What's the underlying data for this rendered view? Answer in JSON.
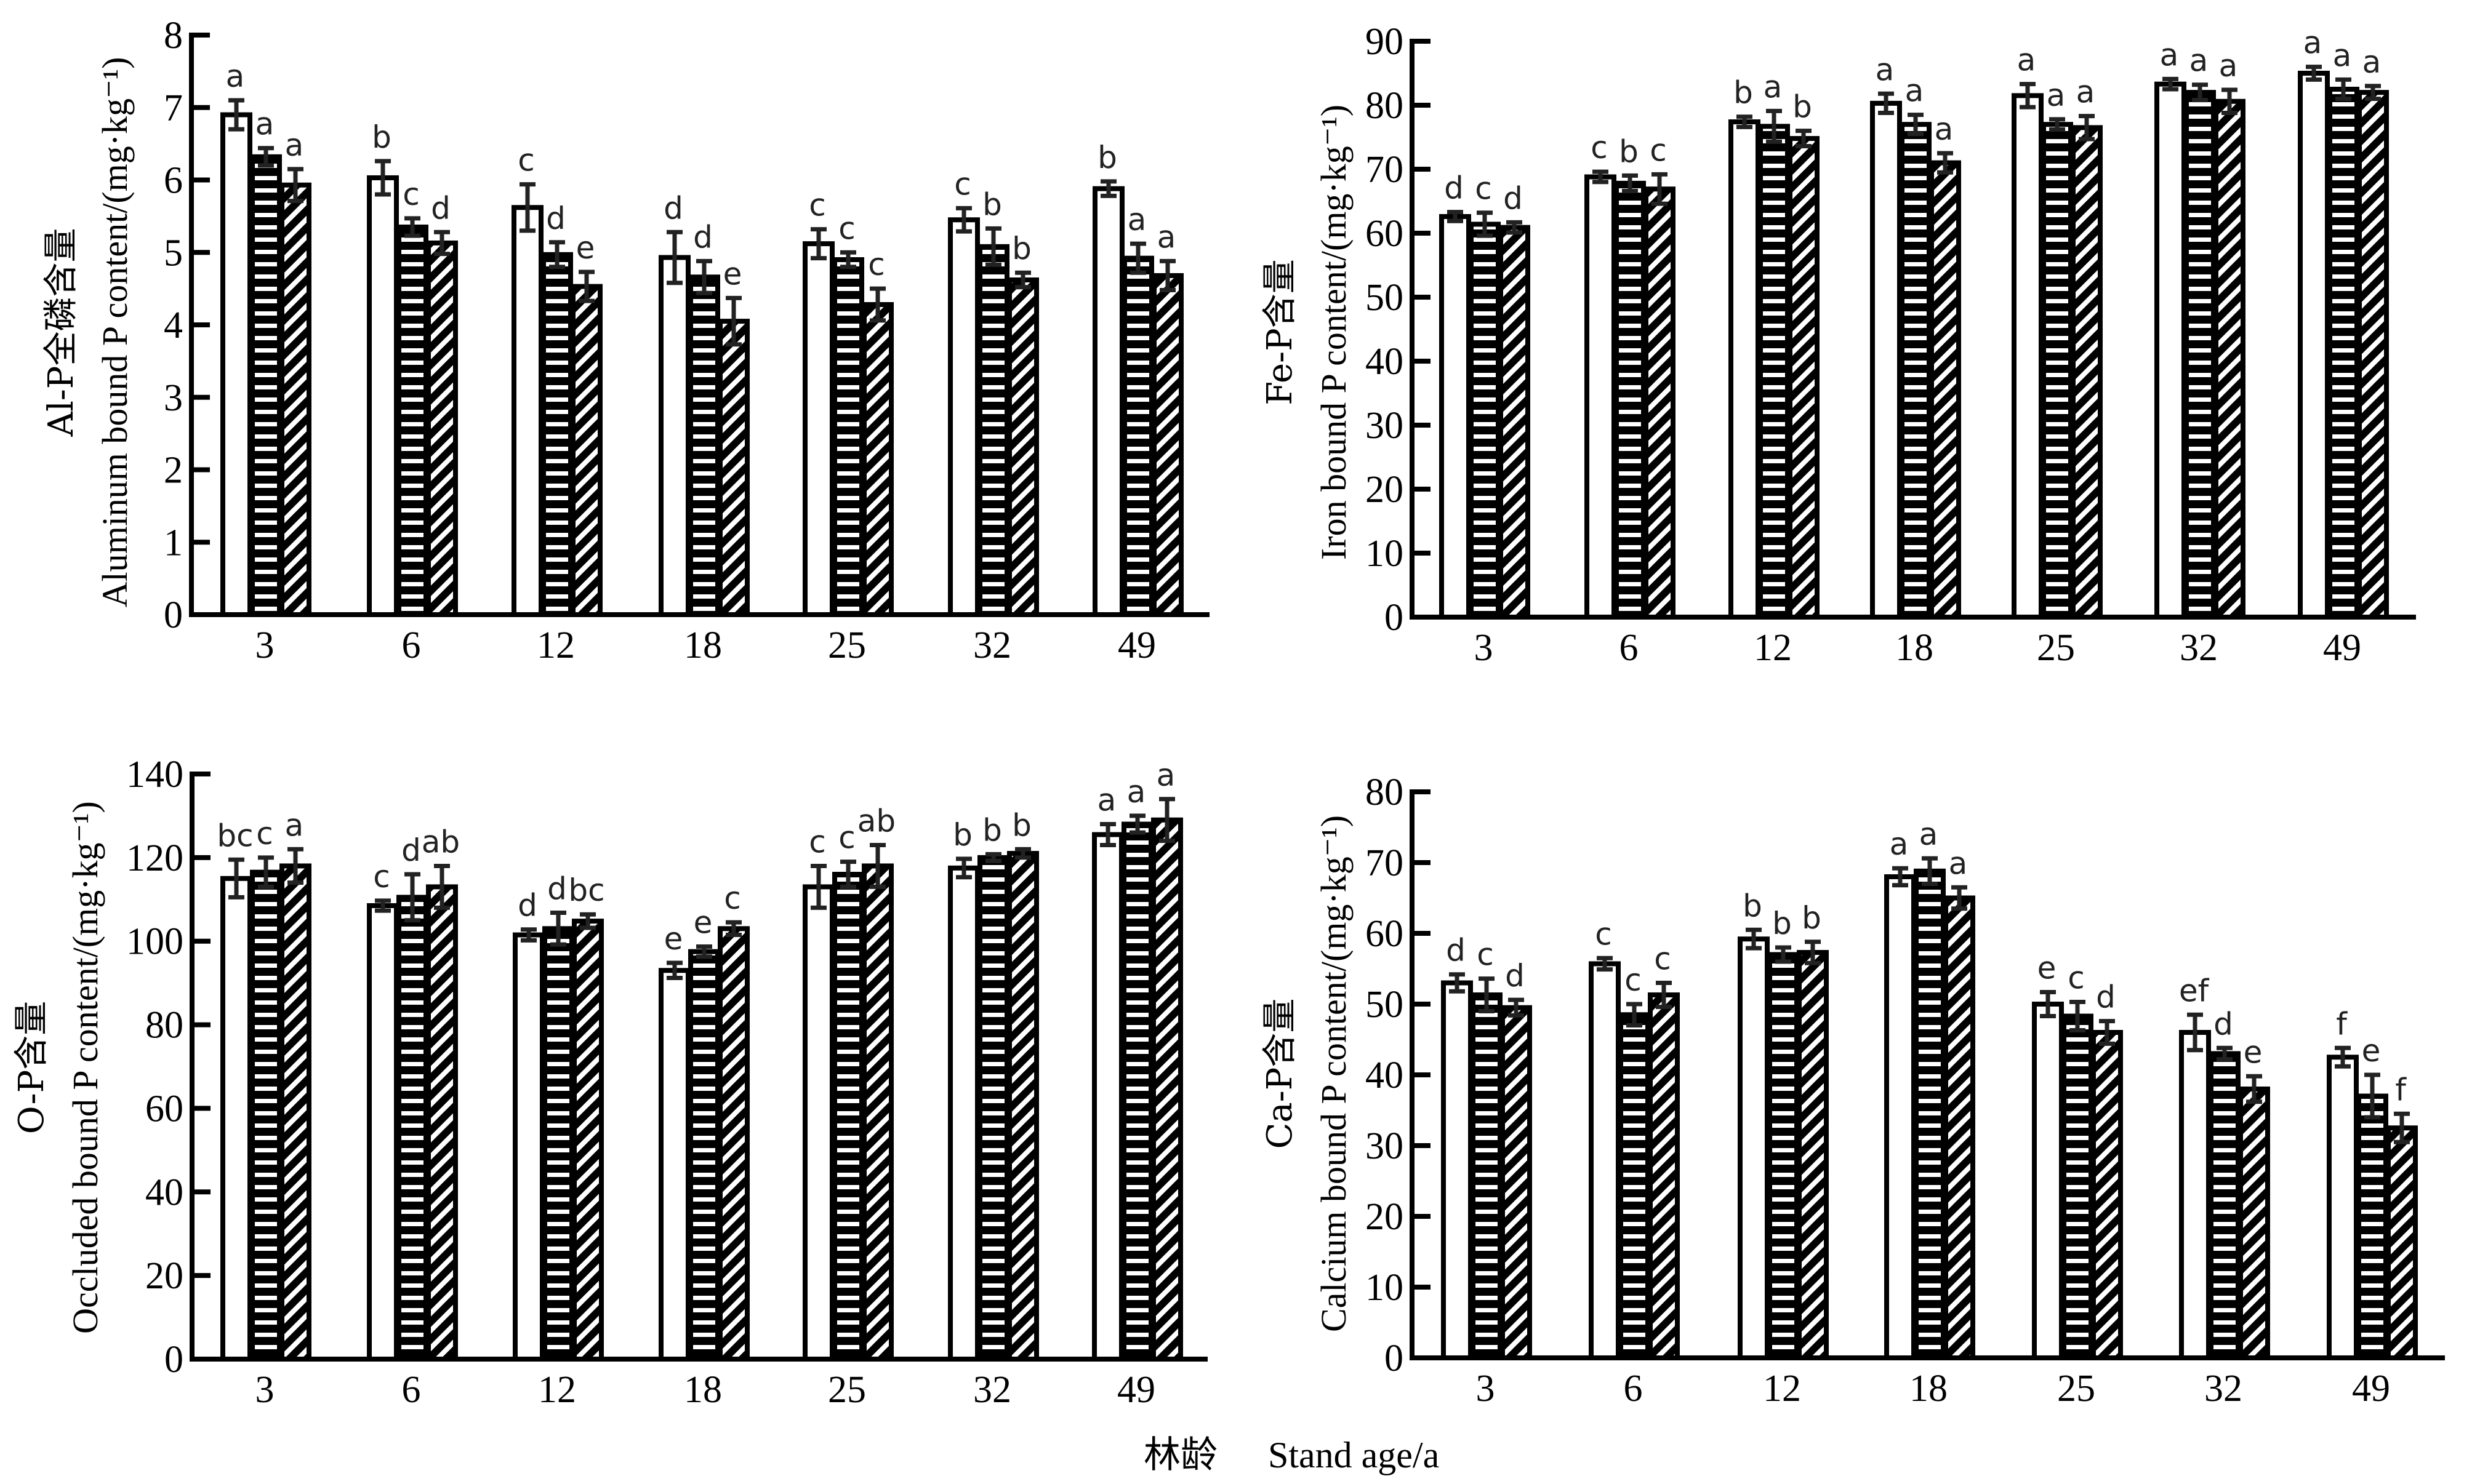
{
  "figure": {
    "shared_xlabel_cn": "林龄",
    "shared_xlabel_en": "Stand age/a"
  },
  "chart_data": [
    {
      "id": "al-p",
      "type": "bar",
      "title_cn": "Al-P全磷含量",
      "ylabel": "Aluminum bound P content/(mg·kg⁻¹)",
      "xlabel": "林龄 Stand age/a",
      "categories": [
        "3",
        "6",
        "12",
        "18",
        "25",
        "32",
        "49"
      ],
      "ylim": [
        0,
        8
      ],
      "yticks": [
        0,
        1,
        2,
        3,
        4,
        5,
        6,
        7,
        8
      ],
      "legend": "none",
      "grid": false,
      "series": [
        {
          "name": "series-1",
          "pattern": "white",
          "values": [
            6.9,
            6.03,
            5.62,
            4.93,
            5.12,
            5.45,
            5.88
          ],
          "errors": [
            0.2,
            0.23,
            0.32,
            0.35,
            0.2,
            0.16,
            0.1
          ],
          "letters": [
            "a",
            "b",
            "c",
            "d",
            "c",
            "c",
            "b"
          ]
        },
        {
          "name": "series-2",
          "pattern": "horizontal-stripes",
          "values": [
            6.32,
            5.35,
            4.97,
            4.66,
            4.9,
            5.08,
            4.92
          ],
          "errors": [
            0.12,
            0.12,
            0.17,
            0.22,
            0.1,
            0.25,
            0.2
          ],
          "letters": [
            "a",
            "c",
            "d",
            "d",
            "c",
            "b",
            "a"
          ]
        },
        {
          "name": "series-3",
          "pattern": "diagonal-stripes",
          "values": [
            5.93,
            5.13,
            4.53,
            4.05,
            4.28,
            4.62,
            4.68
          ],
          "errors": [
            0.22,
            0.15,
            0.2,
            0.32,
            0.22,
            0.1,
            0.2
          ],
          "letters": [
            "a",
            "d",
            "e",
            "e",
            "c",
            "b",
            "a"
          ]
        }
      ]
    },
    {
      "id": "fe-p",
      "type": "bar",
      "title_cn": "Fe-P含量",
      "ylabel": "Iron bound P content/(mg·kg⁻¹)",
      "xlabel": "林龄 Stand age/a",
      "categories": [
        "3",
        "6",
        "12",
        "18",
        "25",
        "32",
        "49"
      ],
      "ylim": [
        0,
        90
      ],
      "yticks": [
        0,
        10,
        20,
        30,
        40,
        50,
        60,
        70,
        80,
        90
      ],
      "legend": "none",
      "grid": false,
      "series": [
        {
          "name": "series-1",
          "pattern": "white",
          "values": [
            62.6,
            68.8,
            77.4,
            80.3,
            81.5,
            83.3,
            85.0
          ],
          "errors": [
            0.7,
            0.8,
            0.8,
            1.5,
            1.8,
            0.8,
            1.0
          ],
          "letters": [
            "d",
            "c",
            "b",
            "a",
            "a",
            "a",
            "a"
          ]
        },
        {
          "name": "series-2",
          "pattern": "horizontal-stripes",
          "values": [
            61.4,
            67.8,
            76.7,
            77.0,
            77.0,
            82.0,
            82.5
          ],
          "errors": [
            1.8,
            1.2,
            2.4,
            1.5,
            0.8,
            1.2,
            1.5
          ],
          "letters": [
            "c",
            "b",
            "a",
            "a",
            "a",
            "a",
            "a"
          ]
        },
        {
          "name": "series-3",
          "pattern": "diagonal-stripes",
          "values": [
            60.9,
            66.9,
            74.8,
            71.0,
            76.5,
            80.6,
            82.0
          ],
          "errors": [
            0.8,
            2.3,
            1.2,
            1.5,
            1.8,
            1.8,
            1.0
          ],
          "letters": [
            "d",
            "c",
            "b",
            "a",
            "a",
            "a",
            "a"
          ]
        }
      ]
    },
    {
      "id": "o-p",
      "type": "bar",
      "title_cn": "O-P含量",
      "ylabel": "Occluded bound P content/(mg·kg⁻¹)",
      "xlabel": "林龄 Stand age/a",
      "categories": [
        "3",
        "6",
        "12",
        "18",
        "25",
        "32",
        "49"
      ],
      "ylim": [
        0,
        140
      ],
      "yticks": [
        0,
        20,
        40,
        60,
        80,
        100,
        120,
        140
      ],
      "legend": "none",
      "grid": false,
      "series": [
        {
          "name": "series-1",
          "pattern": "white",
          "values": [
            115.0,
            108.5,
            101.5,
            93.0,
            113.0,
            117.5,
            125.5
          ],
          "errors": [
            4.5,
            1.2,
            1.3,
            1.8,
            5.0,
            2.2,
            2.5
          ],
          "letters": [
            "bc",
            "c",
            "d",
            "e",
            "c",
            "b",
            "a"
          ]
        },
        {
          "name": "series-2",
          "pattern": "horizontal-stripes",
          "values": [
            116.5,
            110.5,
            103.0,
            97.5,
            116.0,
            120.0,
            128.0
          ],
          "errors": [
            3.5,
            5.5,
            3.8,
            1.2,
            3.0,
            0.8,
            2.0
          ],
          "letters": [
            "c",
            "d",
            "d",
            "e",
            "c",
            "b",
            "a"
          ]
        },
        {
          "name": "series-3",
          "pattern": "diagonal-stripes",
          "values": [
            118.0,
            113.0,
            104.8,
            103.0,
            118.0,
            121.0,
            129.0
          ],
          "errors": [
            4.0,
            5.0,
            1.6,
            1.5,
            5.0,
            1.0,
            5.0
          ],
          "letters": [
            "a",
            "ab",
            "bc",
            "c",
            "ab",
            "b",
            "a"
          ]
        }
      ]
    },
    {
      "id": "ca-p",
      "type": "bar",
      "title_cn": "Ca-P含量",
      "ylabel": "Calcium bound P content/(mg·kg⁻¹)",
      "xlabel": "林龄 Stand age/a",
      "categories": [
        "3",
        "6",
        "12",
        "18",
        "25",
        "32",
        "49"
      ],
      "ylim": [
        0,
        80
      ],
      "yticks": [
        0,
        10,
        20,
        30,
        40,
        50,
        60,
        70,
        80
      ],
      "legend": "none",
      "grid": false,
      "series": [
        {
          "name": "series-1",
          "pattern": "white",
          "values": [
            53.0,
            55.7,
            59.2,
            68.0,
            50.0,
            46.0,
            42.5
          ],
          "errors": [
            1.2,
            0.8,
            1.3,
            1.2,
            1.7,
            2.5,
            1.3
          ],
          "letters": [
            "d",
            "c",
            "b",
            "a",
            "e",
            "ef",
            "f"
          ]
        },
        {
          "name": "series-2",
          "pattern": "horizontal-stripes",
          "values": [
            51.3,
            48.5,
            57.0,
            68.8,
            48.3,
            43.0,
            37.0
          ],
          "errors": [
            2.3,
            1.5,
            1.0,
            1.8,
            2.0,
            0.8,
            3.0
          ],
          "letters": [
            "c",
            "c",
            "b",
            "a",
            "c",
            "d",
            "e"
          ]
        },
        {
          "name": "series-3",
          "pattern": "diagonal-stripes",
          "values": [
            49.5,
            51.3,
            57.3,
            65.0,
            46.0,
            38.0,
            32.5
          ],
          "errors": [
            1.1,
            1.7,
            1.5,
            1.5,
            1.6,
            1.8,
            2.0
          ],
          "letters": [
            "d",
            "c",
            "b",
            "a",
            "d",
            "e",
            "f"
          ]
        }
      ]
    }
  ]
}
